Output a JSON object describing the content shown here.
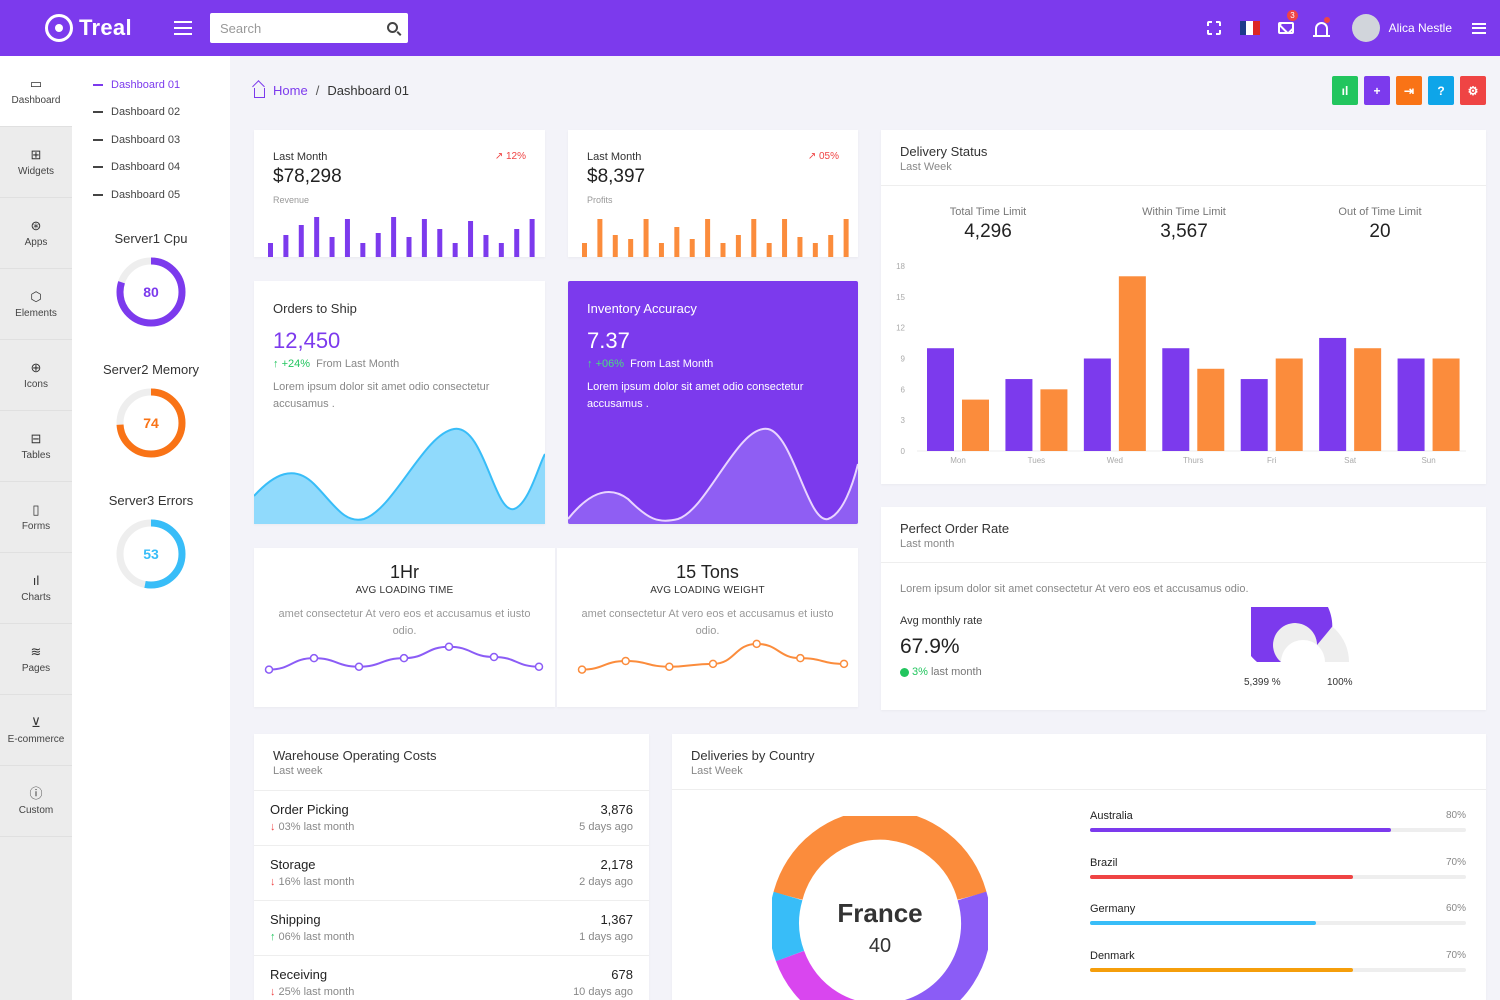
{
  "header": {
    "brand": "Treal",
    "search_placeholder": "Search",
    "mail_badge": "3",
    "username": "Alica Nestle"
  },
  "iconbar": [
    {
      "label": "Dashboard",
      "icon": "monitor-icon",
      "glyph": "▭"
    },
    {
      "label": "Widgets",
      "icon": "grid-icon",
      "glyph": "⊞"
    },
    {
      "label": "Apps",
      "icon": "apps-icon",
      "glyph": "⊛"
    },
    {
      "label": "Elements",
      "icon": "box-icon",
      "glyph": "⬡"
    },
    {
      "label": "Icons",
      "icon": "globe-icon",
      "glyph": "⊕"
    },
    {
      "label": "Tables",
      "icon": "table-icon",
      "glyph": "⊟"
    },
    {
      "label": "Forms",
      "icon": "file-icon",
      "glyph": "▯"
    },
    {
      "label": "Charts",
      "icon": "bar-chart-icon",
      "glyph": "ıl"
    },
    {
      "label": "Pages",
      "icon": "layers-icon",
      "glyph": "≋"
    },
    {
      "label": "E-commerce",
      "icon": "cart-icon",
      "glyph": "⊻"
    },
    {
      "label": "Custom",
      "icon": "info-icon",
      "glyph": "ⓘ"
    }
  ],
  "submenu": [
    "Dashboard 01",
    "Dashboard 02",
    "Dashboard 03",
    "Dashboard 04",
    "Dashboard 05"
  ],
  "servers": [
    {
      "title": "Server1 Cpu",
      "value": "80",
      "percent": 80,
      "color": "#7c3aed"
    },
    {
      "title": "Server2 Memory",
      "value": "74",
      "percent": 74,
      "color": "#f97316"
    },
    {
      "title": "Server3 Errors",
      "value": "53",
      "percent": 53,
      "color": "#38bdf8"
    }
  ],
  "breadcrumb": {
    "home": "Home",
    "current": "Dashboard 01"
  },
  "actions": [
    {
      "name": "chart-icon",
      "glyph": "ıl",
      "color": "#22c55e"
    },
    {
      "name": "plus-icon",
      "glyph": "+",
      "color": "#7c3aed"
    },
    {
      "name": "login-icon",
      "glyph": "⇥",
      "color": "#f97316"
    },
    {
      "name": "help-icon",
      "glyph": "?",
      "color": "#0ea5e9"
    },
    {
      "name": "settings-icon",
      "glyph": "⚙",
      "color": "#ef4444"
    }
  ],
  "revenue": {
    "label": "Last Month",
    "trend": "12%",
    "value": "$78,298",
    "caption": "Revenue",
    "bars": [
      0.35,
      0.55,
      0.8,
      1.0,
      0.5,
      0.95,
      0.35,
      0.6,
      1.0,
      0.5,
      0.95,
      0.7,
      0.35,
      0.9,
      0.55,
      0.35,
      0.7,
      0.95
    ]
  },
  "profits": {
    "label": "Last Month",
    "trend": "05%",
    "value": "$8,397",
    "caption": "Profits",
    "bars": [
      0.35,
      0.95,
      0.55,
      0.45,
      0.95,
      0.35,
      0.75,
      0.45,
      0.95,
      0.35,
      0.55,
      0.95,
      0.35,
      0.95,
      0.5,
      0.35,
      0.55,
      0.95
    ]
  },
  "orders": {
    "title": "Orders to Ship",
    "value": "12,450",
    "delta": "+24%",
    "delta_label": "From Last Month",
    "text": "Lorem ipsum dolor sit amet odio consectetur accusamus ."
  },
  "inventory": {
    "title": "Inventory Accuracy",
    "value": "7.37",
    "delta": "+06%",
    "delta_label": "From Last Month",
    "text": "Lorem ipsum dolor sit amet odio consectetur accusamus ."
  },
  "loading_time": {
    "title": "1Hr",
    "sub": "AVG LOADING TIME",
    "text": "amet consectetur At vero eos et accusamus et iusto odio.",
    "points": [
      2,
      4,
      2.5,
      4,
      6,
      4.2,
      2.5
    ]
  },
  "loading_weight": {
    "title": "15 Tons",
    "sub": "AVG LOADING WEIGHT",
    "text": "amet consectetur At vero eos et accusamus et iusto odio.",
    "points": [
      2,
      3.5,
      2.5,
      3,
      6.5,
      4,
      3
    ]
  },
  "delivery": {
    "title": "Delivery Status",
    "sub": "Last Week",
    "metrics": [
      {
        "label": "Total Time Limit",
        "value": "4,296"
      },
      {
        "label": "Within Time Limit",
        "value": "3,567"
      },
      {
        "label": "Out of Time Limit",
        "value": "20"
      }
    ]
  },
  "chart_data": {
    "type": "bar",
    "categories": [
      "Mon",
      "Tues",
      "Wed",
      "Thurs",
      "Fri",
      "Sat",
      "Sun"
    ],
    "series": [
      {
        "values": [
          10,
          7,
          9,
          10,
          7,
          11,
          9
        ],
        "color": "#7c3aed"
      },
      {
        "values": [
          5,
          6,
          17,
          8,
          9,
          10,
          9
        ],
        "color": "#fb8c3c"
      }
    ],
    "yticks": [
      0,
      3,
      6,
      9,
      12,
      15,
      18
    ],
    "ylim": [
      0,
      18
    ],
    "xlabel": "",
    "ylabel": ""
  },
  "order_rate": {
    "title": "Perfect Order Rate",
    "sub": "Last month",
    "text": "Lorem ipsum dolor sit amet consectetur At vero eos et accusamus odio.",
    "label": "Avg monthly rate",
    "value": "67.9%",
    "delta": "3%",
    "delta_label": "last month",
    "gauge_left": "5,399 %",
    "gauge_right": "100%",
    "gauge_fraction": 0.72
  },
  "warehouse": {
    "title": "Warehouse Operating Costs",
    "sub": "Last week",
    "rows": [
      {
        "name": "Order Picking",
        "delta": "03% last month",
        "dir": "down",
        "amount": "3,876",
        "ago": "5 days ago"
      },
      {
        "name": "Storage",
        "delta": "16% last month",
        "dir": "down",
        "amount": "2,178",
        "ago": "2 days ago"
      },
      {
        "name": "Shipping",
        "delta": "06% last month",
        "dir": "up",
        "amount": "1,367",
        "ago": "1 days ago"
      },
      {
        "name": "Receiving",
        "delta": "25% last month",
        "dir": "down",
        "amount": "678",
        "ago": "10 days ago"
      }
    ]
  },
  "countries": {
    "title": "Deliveries by Country",
    "sub": "Last Week",
    "donut_label": "France",
    "donut_value": "40",
    "rows": [
      {
        "name": "Australia",
        "pct": "80%",
        "value": 80,
        "color": "#7c3aed"
      },
      {
        "name": "Brazil",
        "pct": "70%",
        "value": 70,
        "color": "#ef4444"
      },
      {
        "name": "Germany",
        "pct": "60%",
        "value": 60,
        "color": "#38bdf8"
      },
      {
        "name": "Denmark",
        "pct": "70%",
        "value": 70,
        "color": "#f59e0b"
      }
    ]
  }
}
